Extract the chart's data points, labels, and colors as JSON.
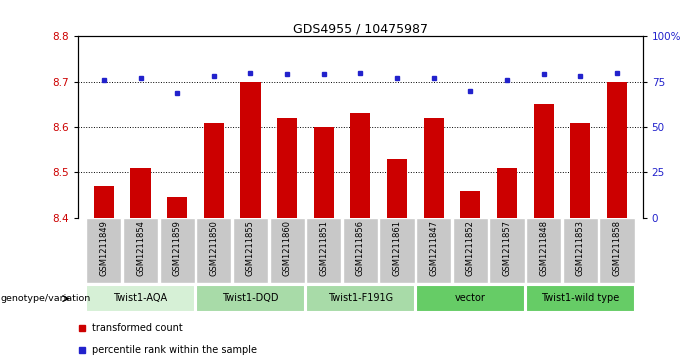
{
  "title": "GDS4955 / 10475987",
  "samples": [
    "GSM1211849",
    "GSM1211854",
    "GSM1211859",
    "GSM1211850",
    "GSM1211855",
    "GSM1211860",
    "GSM1211851",
    "GSM1211856",
    "GSM1211861",
    "GSM1211847",
    "GSM1211852",
    "GSM1211857",
    "GSM1211848",
    "GSM1211853",
    "GSM1211858"
  ],
  "bar_values": [
    8.47,
    8.51,
    8.445,
    8.61,
    8.7,
    8.62,
    8.6,
    8.63,
    8.53,
    8.62,
    8.46,
    8.51,
    8.65,
    8.61,
    8.7
  ],
  "percentile_values": [
    76,
    77,
    69,
    78,
    80,
    79,
    79,
    80,
    77,
    77,
    70,
    76,
    79,
    78,
    80
  ],
  "ylim_left": [
    8.4,
    8.8
  ],
  "ylim_right": [
    0,
    100
  ],
  "yticks_left": [
    8.4,
    8.5,
    8.6,
    8.7,
    8.8
  ],
  "yticks_right": [
    0,
    25,
    50,
    75,
    100
  ],
  "ytick_labels_right": [
    "0",
    "25",
    "50",
    "75",
    "100%"
  ],
  "bar_color": "#cc0000",
  "dot_color": "#2222cc",
  "grid_color": "#000000",
  "groups": [
    {
      "label": "Twist1-AQA",
      "start": 0,
      "end": 3,
      "color": "#d6f0d6"
    },
    {
      "label": "Twist1-DQD",
      "start": 3,
      "end": 6,
      "color": "#a8dba8"
    },
    {
      "label": "Twist1-F191G",
      "start": 6,
      "end": 9,
      "color": "#a8dba8"
    },
    {
      "label": "vector",
      "start": 9,
      "end": 12,
      "color": "#66cc66"
    },
    {
      "label": "Twist1-wild type",
      "start": 12,
      "end": 15,
      "color": "#66cc66"
    }
  ],
  "group_label_prefix": "genotype/variation",
  "legend_bar_label": "transformed count",
  "legend_dot_label": "percentile rank within the sample",
  "tick_label_color_left": "#cc0000",
  "tick_label_color_right": "#2222cc",
  "sample_bg_color": "#c8c8c8"
}
